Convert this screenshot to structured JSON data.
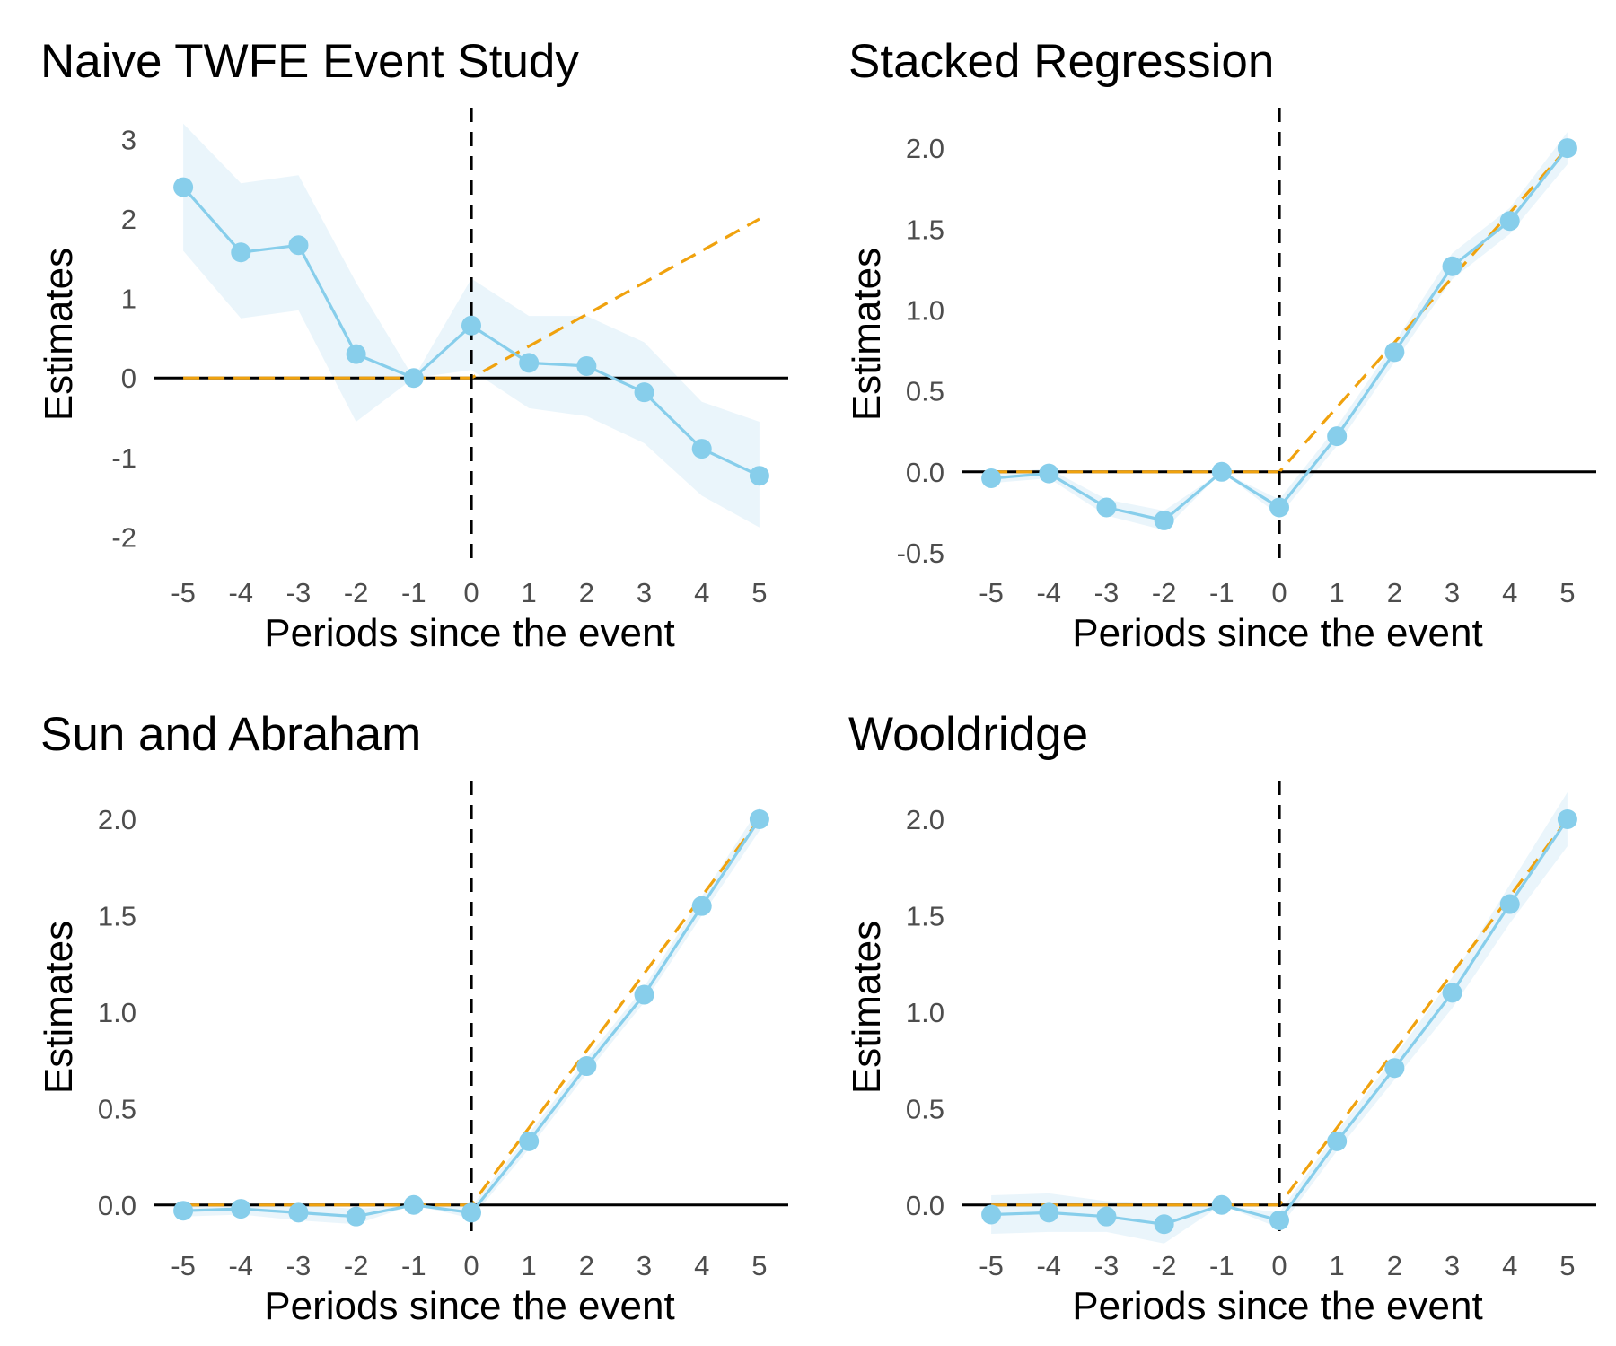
{
  "colors": {
    "estimate": "#87CEEB",
    "ci_band": "#E6F3FA",
    "true_effect": "#F0A20E",
    "zero_line": "#000000",
    "event_line": "#000000",
    "background": "#ffffff"
  },
  "chart_data": [
    {
      "type": "line",
      "title": "Naive TWFE Event Study",
      "xlabel": "Periods since the event",
      "ylabel": "Estimates",
      "x": [
        -5,
        -4,
        -3,
        -2,
        -1,
        0,
        1,
        2,
        3,
        4,
        5
      ],
      "xticks": [
        "-5",
        "-4",
        "-3",
        "-2",
        "-1",
        "0",
        "1",
        "2",
        "3",
        "4",
        "5"
      ],
      "yticks": [
        -2,
        -1,
        0,
        1,
        2,
        3
      ],
      "ytick_labels": [
        "-2",
        "-1",
        "0",
        "1",
        "2",
        "3"
      ],
      "xlim": [
        -5.5,
        5.5
      ],
      "ylim": [
        -2.3,
        3.4
      ],
      "grid": false,
      "hline": 0,
      "vline": 0,
      "series": [
        {
          "role": "estimate",
          "values": [
            2.4,
            1.58,
            1.67,
            0.3,
            0.0,
            0.66,
            0.19,
            0.15,
            -0.18,
            -0.89,
            -1.23
          ],
          "lower": [
            1.6,
            0.75,
            0.85,
            -0.55,
            0.0,
            0.1,
            -0.38,
            -0.48,
            -0.82,
            -1.48,
            -1.88
          ],
          "upper": [
            3.2,
            2.45,
            2.55,
            1.2,
            0.0,
            1.25,
            0.78,
            0.78,
            0.45,
            -0.3,
            -0.55
          ]
        },
        {
          "role": "true-effect",
          "x": [
            -5,
            0,
            1,
            2,
            3,
            4,
            5
          ],
          "values": [
            0,
            0,
            0.4,
            0.8,
            1.2,
            1.6,
            2.0
          ]
        }
      ]
    },
    {
      "type": "line",
      "title": "Stacked Regression",
      "xlabel": "Periods since the event",
      "ylabel": "Estimates",
      "x": [
        -5,
        -4,
        -3,
        -2,
        -1,
        0,
        1,
        2,
        3,
        4,
        5
      ],
      "xticks": [
        "-5",
        "-4",
        "-3",
        "-2",
        "-1",
        "0",
        "1",
        "2",
        "3",
        "4",
        "5"
      ],
      "yticks": [
        -0.5,
        0,
        0.5,
        1,
        1.5,
        2
      ],
      "ytick_labels": [
        "-0.5",
        "0.0",
        "0.5",
        "1.0",
        "1.5",
        "2.0"
      ],
      "xlim": [
        -5.5,
        5.5
      ],
      "ylim": [
        -0.55,
        2.25
      ],
      "grid": false,
      "hline": 0,
      "vline": 0,
      "series": [
        {
          "role": "estimate",
          "values": [
            -0.04,
            -0.01,
            -0.22,
            -0.3,
            0.0,
            -0.22,
            0.22,
            0.74,
            1.27,
            1.55,
            2.0
          ],
          "lower": [
            -0.07,
            -0.04,
            -0.27,
            -0.36,
            0.0,
            -0.27,
            0.16,
            0.68,
            1.19,
            1.47,
            1.9
          ],
          "upper": [
            -0.01,
            0.02,
            -0.17,
            -0.24,
            0.0,
            -0.17,
            0.28,
            0.8,
            1.35,
            1.63,
            2.1
          ]
        },
        {
          "role": "true-effect",
          "x": [
            -5,
            0,
            1,
            2,
            3,
            4,
            5
          ],
          "values": [
            0,
            0,
            0.4,
            0.8,
            1.2,
            1.6,
            2.0
          ]
        }
      ]
    },
    {
      "type": "line",
      "title": "Sun and Abraham",
      "xlabel": "Periods since the event",
      "ylabel": "Estimates",
      "x": [
        -5,
        -4,
        -3,
        -2,
        -1,
        0,
        1,
        2,
        3,
        4,
        5
      ],
      "xticks": [
        "-5",
        "-4",
        "-3",
        "-2",
        "-1",
        "0",
        "1",
        "2",
        "3",
        "4",
        "5"
      ],
      "yticks": [
        0,
        0.5,
        1,
        1.5,
        2
      ],
      "ytick_labels": [
        "0.0",
        "0.5",
        "1.0",
        "1.5",
        "2.0"
      ],
      "xlim": [
        -5.5,
        5.5
      ],
      "ylim": [
        -0.15,
        2.2
      ],
      "grid": false,
      "hline": 0,
      "vline": 0,
      "series": [
        {
          "role": "estimate",
          "values": [
            -0.03,
            -0.02,
            -0.04,
            -0.06,
            0.0,
            -0.04,
            0.33,
            0.72,
            1.09,
            1.55,
            2.0
          ],
          "lower": [
            -0.06,
            -0.05,
            -0.08,
            -0.1,
            0.0,
            -0.07,
            0.29,
            0.68,
            1.05,
            1.5,
            1.94
          ],
          "upper": [
            0.0,
            0.01,
            0.0,
            -0.02,
            0.0,
            -0.01,
            0.37,
            0.76,
            1.13,
            1.6,
            2.06
          ]
        },
        {
          "role": "true-effect",
          "x": [
            -5,
            0,
            1,
            2,
            3,
            4,
            5
          ],
          "values": [
            0,
            0,
            0.4,
            0.8,
            1.2,
            1.6,
            2.0
          ]
        }
      ]
    },
    {
      "type": "line",
      "title": "Wooldridge",
      "xlabel": "Periods since the event",
      "ylabel": "Estimates",
      "x": [
        -5,
        -4,
        -3,
        -2,
        -1,
        0,
        1,
        2,
        3,
        4,
        5
      ],
      "xticks": [
        "-5",
        "-4",
        "-3",
        "-2",
        "-1",
        "0",
        "1",
        "2",
        "3",
        "4",
        "5"
      ],
      "yticks": [
        0,
        0.5,
        1,
        1.5,
        2
      ],
      "ytick_labels": [
        "0.0",
        "0.5",
        "1.0",
        "1.5",
        "2.0"
      ],
      "xlim": [
        -5.5,
        5.5
      ],
      "ylim": [
        -0.15,
        2.2
      ],
      "grid": false,
      "hline": 0,
      "vline": 0,
      "series": [
        {
          "role": "estimate",
          "values": [
            -0.05,
            -0.04,
            -0.06,
            -0.1,
            0.0,
            -0.08,
            0.33,
            0.71,
            1.1,
            1.56,
            2.0
          ],
          "lower": [
            -0.15,
            -0.14,
            -0.14,
            -0.2,
            0.0,
            -0.12,
            0.28,
            0.65,
            1.02,
            1.46,
            1.86
          ],
          "upper": [
            0.05,
            0.06,
            0.02,
            0.0,
            0.0,
            -0.04,
            0.38,
            0.77,
            1.18,
            1.66,
            2.14
          ]
        },
        {
          "role": "true-effect",
          "x": [
            -5,
            0,
            1,
            2,
            3,
            4,
            5
          ],
          "values": [
            0,
            0,
            0.4,
            0.8,
            1.2,
            1.6,
            2.0
          ]
        }
      ]
    }
  ]
}
